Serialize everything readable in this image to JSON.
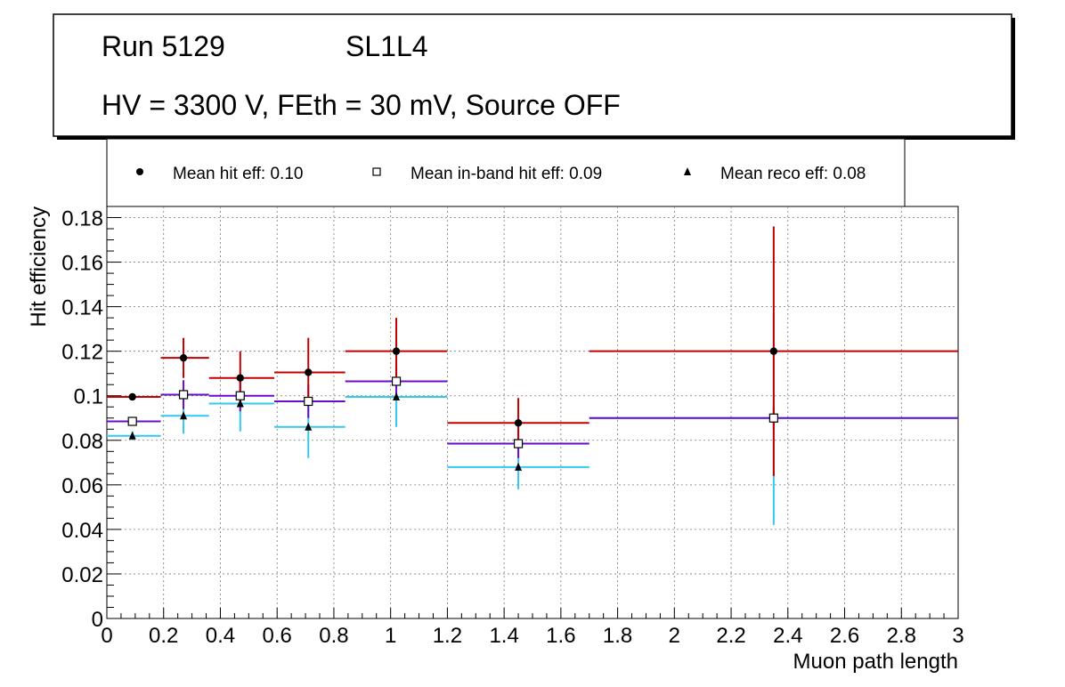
{
  "header": {
    "run": "Run 5129",
    "layer": "SL1L4",
    "conditions": "HV = 3300 V, FEth = 30 mV, Source OFF"
  },
  "legend": [
    {
      "marker": "circle",
      "label": "Mean hit  eff: 0.10"
    },
    {
      "marker": "open-square",
      "label": "Mean in-band hit eff: 0.09"
    },
    {
      "marker": "triangle",
      "label": "Mean reco eff: 0.08"
    }
  ],
  "chart_data": {
    "type": "scatter",
    "title": "",
    "xlabel": "Muon path length",
    "ylabel": "Hit efficiency",
    "xlim": [
      0,
      3
    ],
    "ylim": [
      0,
      0.185
    ],
    "grid": true,
    "xticks": [
      0,
      0.2,
      0.4,
      0.6,
      0.8,
      1,
      1.2,
      1.4,
      1.6,
      1.8,
      2,
      2.2,
      2.4,
      2.6,
      2.8,
      3
    ],
    "xtick_labels": [
      "0",
      "0.2",
      "0.4",
      "0.6",
      "0.8",
      "1",
      "1.2",
      "1.4",
      "1.6",
      "1.8",
      "2",
      "2.2",
      "2.4",
      "2.6",
      "2.8",
      "3"
    ],
    "yticks": [
      0,
      0.02,
      0.04,
      0.06,
      0.08,
      0.1,
      0.12,
      0.14,
      0.16,
      0.18
    ],
    "ytick_labels": [
      "0",
      "0.02",
      "0.04",
      "0.06",
      "0.08",
      "0.1",
      "0.12",
      "0.14",
      "0.16",
      "0.18"
    ],
    "series": [
      {
        "name": "Mean hit  eff: 0.10",
        "marker": "circle",
        "color": "#c00000",
        "points": [
          {
            "x": 0.09,
            "xlo": 0.0,
            "xhi": 0.19,
            "y": 0.0995,
            "ylo": 0.098,
            "yhi": 0.1005
          },
          {
            "x": 0.27,
            "xlo": 0.19,
            "xhi": 0.36,
            "y": 0.117,
            "ylo": 0.108,
            "yhi": 0.126
          },
          {
            "x": 0.47,
            "xlo": 0.36,
            "xhi": 0.59,
            "y": 0.108,
            "ylo": 0.096,
            "yhi": 0.12
          },
          {
            "x": 0.71,
            "xlo": 0.59,
            "xhi": 0.84,
            "y": 0.1105,
            "ylo": 0.096,
            "yhi": 0.126
          },
          {
            "x": 1.02,
            "xlo": 0.84,
            "xhi": 1.2,
            "y": 0.12,
            "ylo": 0.105,
            "yhi": 0.135
          },
          {
            "x": 1.45,
            "xlo": 1.2,
            "xhi": 1.7,
            "y": 0.0878,
            "ylo": 0.077,
            "yhi": 0.099
          },
          {
            "x": 2.35,
            "xlo": 1.7,
            "xhi": 3.0,
            "y": 0.12,
            "ylo": 0.064,
            "yhi": 0.176
          }
        ]
      },
      {
        "name": "Mean in-band hit eff: 0.09",
        "marker": "open-square",
        "color": "#6a0dc8",
        "points": [
          {
            "x": 0.09,
            "xlo": 0.0,
            "xhi": 0.19,
            "y": 0.0885,
            "ylo": 0.087,
            "yhi": 0.09
          },
          {
            "x": 0.27,
            "xlo": 0.19,
            "xhi": 0.36,
            "y": 0.1005,
            "ylo": 0.094,
            "yhi": 0.107
          },
          {
            "x": 0.47,
            "xlo": 0.36,
            "xhi": 0.59,
            "y": 0.1,
            "ylo": 0.093,
            "yhi": 0.107
          },
          {
            "x": 0.71,
            "xlo": 0.59,
            "xhi": 0.84,
            "y": 0.0975,
            "ylo": 0.09,
            "yhi": 0.105
          },
          {
            "x": 1.02,
            "xlo": 0.84,
            "xhi": 1.2,
            "y": 0.1065,
            "ylo": 0.1,
            "yhi": 0.113
          },
          {
            "x": 1.45,
            "xlo": 1.2,
            "xhi": 1.7,
            "y": 0.0785,
            "ylo": 0.072,
            "yhi": 0.085
          },
          {
            "x": 2.35,
            "xlo": 1.7,
            "xhi": 3.0,
            "y": 0.09,
            "ylo": 0.085,
            "yhi": 0.095
          }
        ]
      },
      {
        "name": "Mean reco eff: 0.08",
        "marker": "triangle",
        "color": "#33c8f0",
        "points": [
          {
            "x": 0.09,
            "xlo": 0.0,
            "xhi": 0.19,
            "y": 0.082,
            "ylo": 0.08,
            "yhi": 0.084
          },
          {
            "x": 0.27,
            "xlo": 0.19,
            "xhi": 0.36,
            "y": 0.091,
            "ylo": 0.083,
            "yhi": 0.099
          },
          {
            "x": 0.47,
            "xlo": 0.36,
            "xhi": 0.59,
            "y": 0.0965,
            "ylo": 0.084,
            "yhi": 0.109
          },
          {
            "x": 0.71,
            "xlo": 0.59,
            "xhi": 0.84,
            "y": 0.086,
            "ylo": 0.072,
            "yhi": 0.1
          },
          {
            "x": 1.02,
            "xlo": 0.84,
            "xhi": 1.2,
            "y": 0.0995,
            "ylo": 0.086,
            "yhi": 0.113
          },
          {
            "x": 1.45,
            "xlo": 1.2,
            "xhi": 1.7,
            "y": 0.068,
            "ylo": 0.058,
            "yhi": 0.078
          },
          {
            "x": 2.35,
            "xlo": 1.7,
            "xhi": 3.0,
            "y": 0.09,
            "ylo": 0.042,
            "yhi": 0.137
          }
        ]
      }
    ]
  }
}
